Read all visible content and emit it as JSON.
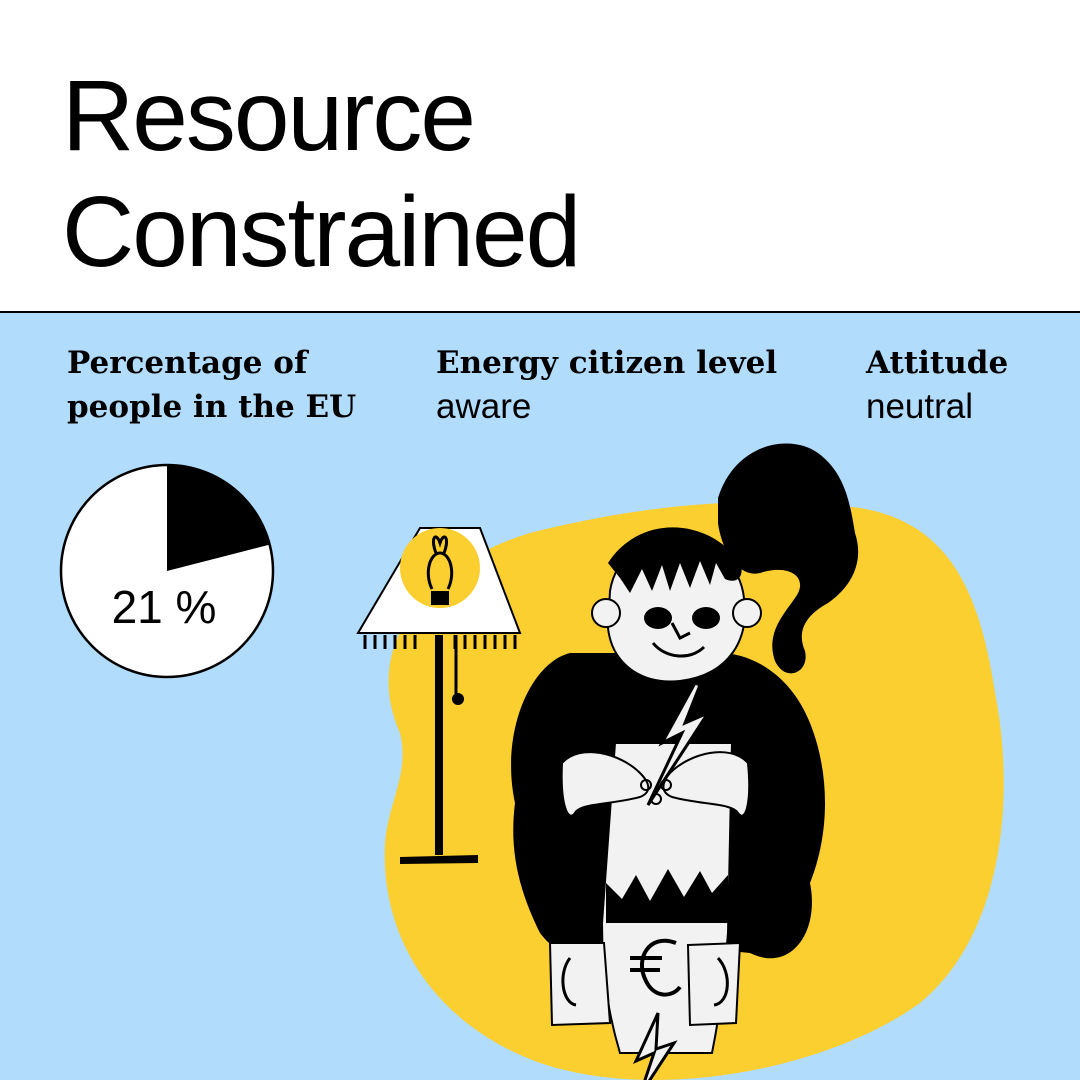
{
  "title_lines": [
    "Resource",
    "Constrained"
  ],
  "stats": {
    "share": {
      "label": "Percentage of people in the EU",
      "value_label": "21 %",
      "fraction": 0.21
    },
    "level": {
      "label": "Energy citizen level",
      "value": "aware"
    },
    "attitude": {
      "label": "Attitude",
      "value": "neutral"
    }
  },
  "colors": {
    "panel_background": "#b1dcfb",
    "accent_yellow": "#fccf30",
    "ink": "#000000",
    "paper": "#f2f2f2"
  },
  "illustration": {
    "icons": [
      "lamp-icon",
      "lightbulb-icon",
      "lightning-bolt-icon",
      "euro-sign-icon"
    ]
  }
}
